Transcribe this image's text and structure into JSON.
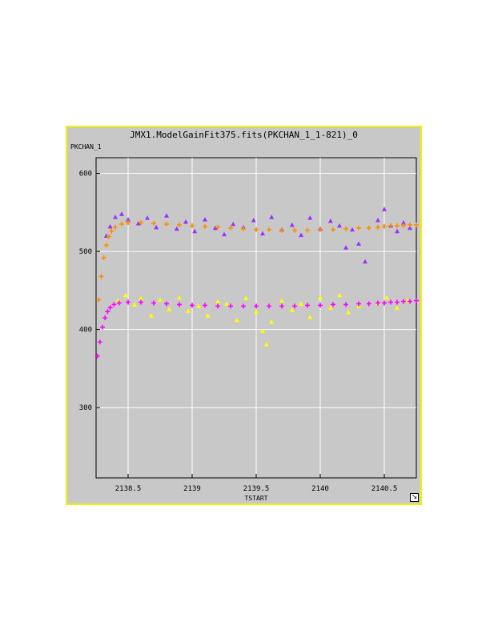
{
  "window": {
    "title": "JMX1.ModelGainFit375.fits(PKCHAN_1_1-821)_0",
    "resize_icon": "resize-arrow-icon"
  },
  "chart_data": {
    "type": "scatter",
    "xlabel": "TSTART",
    "ylabel": "PKCHAN_1",
    "xlim": [
      2138.25,
      2140.75
    ],
    "ylim": [
      210,
      620
    ],
    "xticks": [
      2138.5,
      2139,
      2139.5,
      2140,
      2140.5
    ],
    "xtick_labels": [
      "2138.5",
      "2139",
      "2139.5",
      "2140",
      "2140.5"
    ],
    "yticks": [
      300,
      400,
      500,
      600
    ],
    "ytick_labels": [
      "300",
      "400",
      "500",
      "600"
    ],
    "grid": true,
    "series": [
      {
        "marker": "triangle",
        "color": "#9b30ff",
        "x": [
          2138.33,
          2138.36,
          2138.4,
          2138.45,
          2138.5,
          2138.58,
          2138.65,
          2138.72,
          2138.8,
          2138.88,
          2138.95,
          2139.02,
          2139.1,
          2139.18,
          2139.25,
          2139.32,
          2139.4,
          2139.48,
          2139.55,
          2139.62,
          2139.7,
          2139.78,
          2139.85,
          2139.92,
          2140.0,
          2140.08,
          2140.15,
          2140.2,
          2140.25,
          2140.3,
          2140.35,
          2140.45,
          2140.5,
          2140.55,
          2140.6,
          2140.65,
          2140.7
        ],
        "y": [
          520,
          532,
          544,
          548,
          541,
          536,
          543,
          531,
          546,
          529,
          538,
          526,
          541,
          530,
          522,
          535,
          531,
          540,
          523,
          544,
          528,
          534,
          521,
          543,
          529,
          539,
          533,
          505,
          528,
          510,
          487,
          540,
          554,
          533,
          526,
          537,
          530
        ]
      },
      {
        "marker": "plus",
        "color": "#ff8c00",
        "x": [
          2138.27,
          2138.29,
          2138.31,
          2138.33,
          2138.35,
          2138.37,
          2138.4,
          2138.45,
          2138.5,
          2138.6,
          2138.7,
          2138.8,
          2138.9,
          2139.0,
          2139.1,
          2139.2,
          2139.3,
          2139.4,
          2139.5,
          2139.6,
          2139.7,
          2139.8,
          2139.9,
          2140.0,
          2140.1,
          2140.2,
          2140.3,
          2140.38,
          2140.45,
          2140.5,
          2140.55,
          2140.6,
          2140.65,
          2140.7,
          2140.75
        ],
        "y": [
          438,
          468,
          492,
          508,
          519,
          526,
          531,
          535,
          537,
          537,
          536,
          535,
          534,
          533,
          532,
          531,
          530,
          529,
          528,
          528,
          527,
          527,
          527,
          528,
          528,
          529,
          530,
          530,
          531,
          532,
          533,
          533,
          533,
          534,
          534
        ]
      },
      {
        "marker": "triangle",
        "color": "#ffff00",
        "x": [
          2138.42,
          2138.48,
          2138.55,
          2138.6,
          2138.68,
          2138.75,
          2138.82,
          2138.9,
          2138.97,
          2139.05,
          2139.12,
          2139.2,
          2139.27,
          2139.35,
          2139.42,
          2139.5,
          2139.55,
          2139.58,
          2139.62,
          2139.7,
          2139.78,
          2139.85,
          2139.92,
          2140.0,
          2140.08,
          2140.15,
          2140.22,
          2140.3,
          2140.45,
          2140.52,
          2140.6,
          2140.68
        ],
        "y": [
          437,
          444,
          432,
          440,
          418,
          438,
          426,
          441,
          424,
          430,
          418,
          436,
          433,
          412,
          440,
          423,
          398,
          381,
          410,
          437,
          425,
          433,
          416,
          441,
          428,
          444,
          422,
          430,
          434,
          441,
          428,
          437
        ]
      },
      {
        "marker": "plus",
        "color": "#ff00ff",
        "x": [
          2138.26,
          2138.28,
          2138.3,
          2138.32,
          2138.34,
          2138.36,
          2138.39,
          2138.43,
          2138.5,
          2138.6,
          2138.7,
          2138.8,
          2138.9,
          2139.0,
          2139.1,
          2139.2,
          2139.3,
          2139.4,
          2139.5,
          2139.6,
          2139.7,
          2139.8,
          2139.9,
          2140.0,
          2140.1,
          2140.2,
          2140.3,
          2140.38,
          2140.45,
          2140.5,
          2140.55,
          2140.6,
          2140.65,
          2140.7,
          2140.75
        ],
        "y": [
          366,
          384,
          403,
          415,
          423,
          428,
          432,
          434,
          435,
          435,
          434,
          433,
          432,
          431,
          431,
          430,
          430,
          430,
          430,
          430,
          430,
          430,
          431,
          431,
          432,
          432,
          433,
          433,
          434,
          434,
          435,
          435,
          436,
          436,
          437
        ]
      }
    ]
  }
}
